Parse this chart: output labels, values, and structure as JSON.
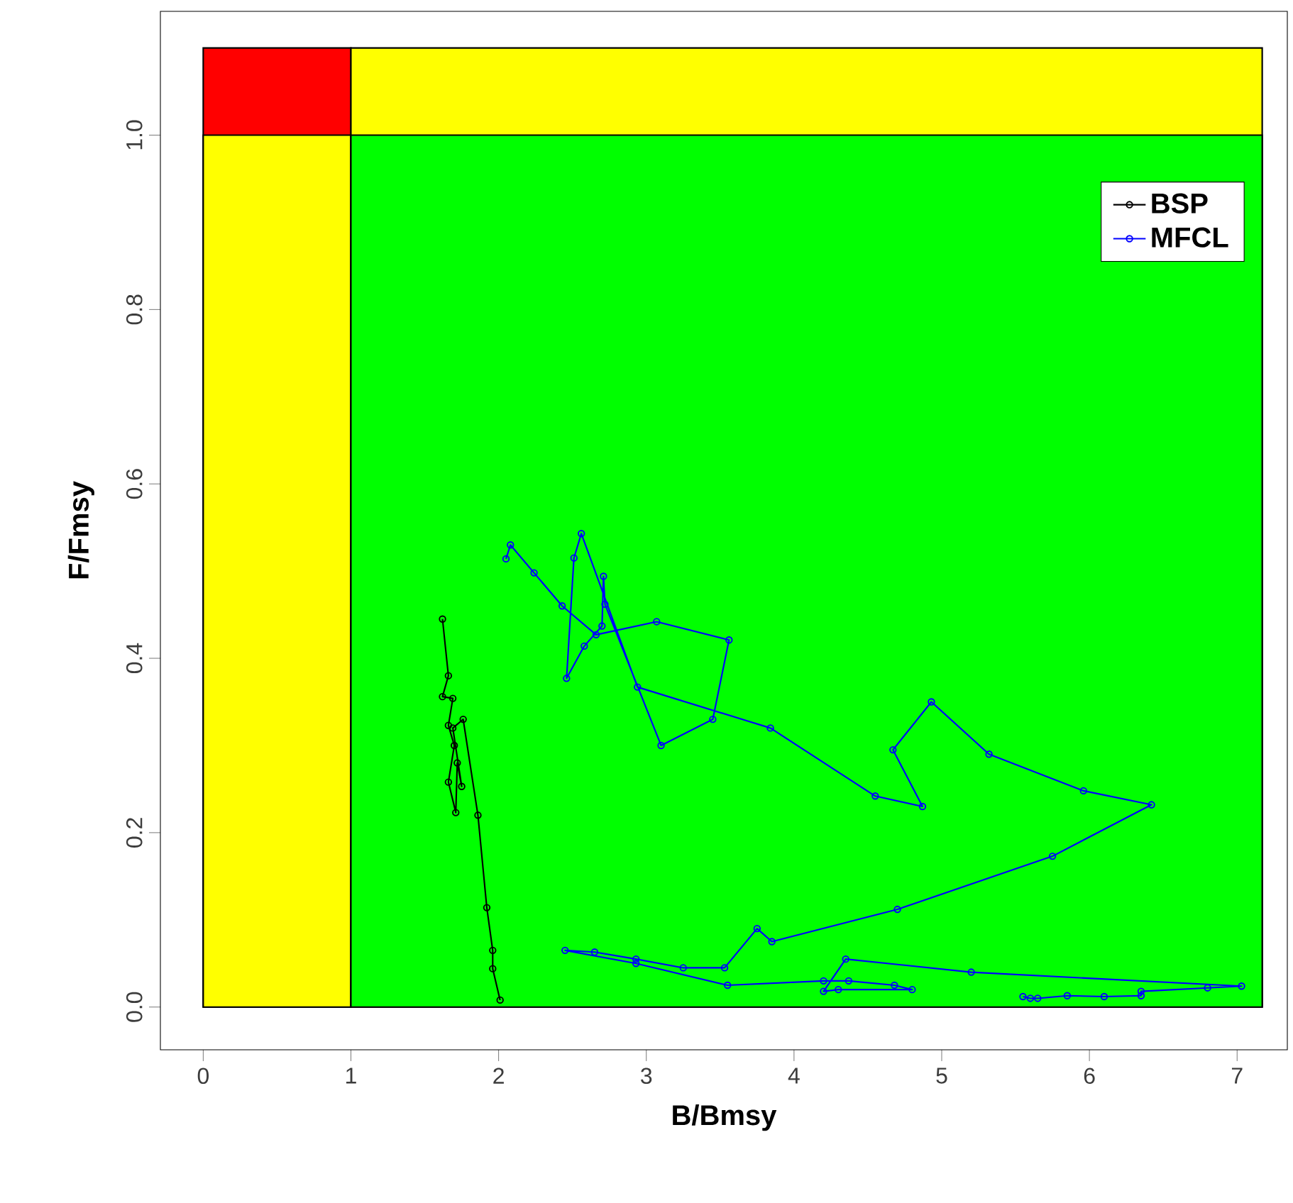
{
  "chart_data": {
    "type": "line",
    "xlabel": "B/Bmsy",
    "ylabel": "F/Fmsy",
    "xlim": [
      -0.29,
      7.34
    ],
    "ylim": [
      -0.049,
      1.142
    ],
    "xticks": [
      0,
      1,
      2,
      3,
      4,
      5,
      6,
      7
    ],
    "yticks": [
      {
        "value": 0,
        "label": "0.0"
      },
      {
        "value": 0.2,
        "label": "0.2"
      },
      {
        "value": 0.4,
        "label": "0.4"
      },
      {
        "value": 0.6,
        "label": "0.6"
      },
      {
        "value": 0.8,
        "label": "0.8"
      },
      {
        "value": 1.0,
        "label": "1.0"
      }
    ],
    "grid": false,
    "legend": "top right",
    "series": [
      {
        "type": "area",
        "color": "#ff0000",
        "x": [
          0,
          1
        ],
        "values": [
          1.1,
          1.1
        ]
      },
      {
        "type": "area",
        "color": "#ffff00",
        "x": [
          0,
          1
        ],
        "values": [
          1,
          1
        ]
      },
      {
        "type": "area",
        "color": "#ffff00",
        "x": [
          1,
          7.17
        ],
        "values": [
          1.1,
          1.1
        ]
      },
      {
        "type": "area",
        "color": "#00ff00",
        "x": [
          1,
          7.17
        ],
        "values": [
          1,
          1
        ]
      },
      {
        "name": "BSP",
        "color": "#000000",
        "marker": "circle",
        "x": [
          1.62,
          1.66,
          1.62,
          1.69,
          1.66,
          1.7,
          1.66,
          1.71,
          1.72,
          1.75,
          1.69,
          1.76,
          1.86,
          1.92,
          1.96,
          1.96,
          2.01
        ],
        "values": [
          0.445,
          0.38,
          0.356,
          0.354,
          0.323,
          0.3,
          0.258,
          0.223,
          0.28,
          0.253,
          0.32,
          0.33,
          0.22,
          0.114,
          0.065,
          0.044,
          0.008
        ]
      },
      {
        "name": "MFCL",
        "color": "#0000ff",
        "marker": "circle",
        "x": [
          2.05,
          2.08,
          2.24,
          2.43,
          2.66,
          3.07,
          3.56,
          3.45,
          3.1,
          2.72,
          2.71,
          2.7,
          2.58,
          2.46,
          2.51,
          2.56,
          2.94,
          3.84,
          4.55,
          4.87,
          4.67,
          4.93,
          5.32,
          5.96,
          6.42,
          5.75,
          4.7,
          3.85,
          3.75,
          3.53,
          3.25,
          2.93,
          2.65,
          2.45,
          2.93,
          3.55,
          4.2,
          4.37,
          4.68,
          4.8,
          4.3,
          4.2,
          4.35,
          5.2,
          7.03,
          6.8,
          6.35,
          6.35,
          6.1,
          5.85,
          5.65,
          5.6,
          5.55
        ],
        "values": [
          0.514,
          0.53,
          0.498,
          0.46,
          0.427,
          0.442,
          0.421,
          0.33,
          0.3,
          0.462,
          0.494,
          0.437,
          0.414,
          0.377,
          0.515,
          0.543,
          0.367,
          0.32,
          0.242,
          0.23,
          0.295,
          0.35,
          0.29,
          0.248,
          0.232,
          0.173,
          0.112,
          0.075,
          0.09,
          0.045,
          0.045,
          0.055,
          0.063,
          0.065,
          0.05,
          0.025,
          0.03,
          0.03,
          0.025,
          0.02,
          0.02,
          0.018,
          0.055,
          0.04,
          0.024,
          0.022,
          0.018,
          0.013,
          0.012,
          0.013,
          0.01,
          0.01,
          0.012
        ]
      }
    ]
  }
}
